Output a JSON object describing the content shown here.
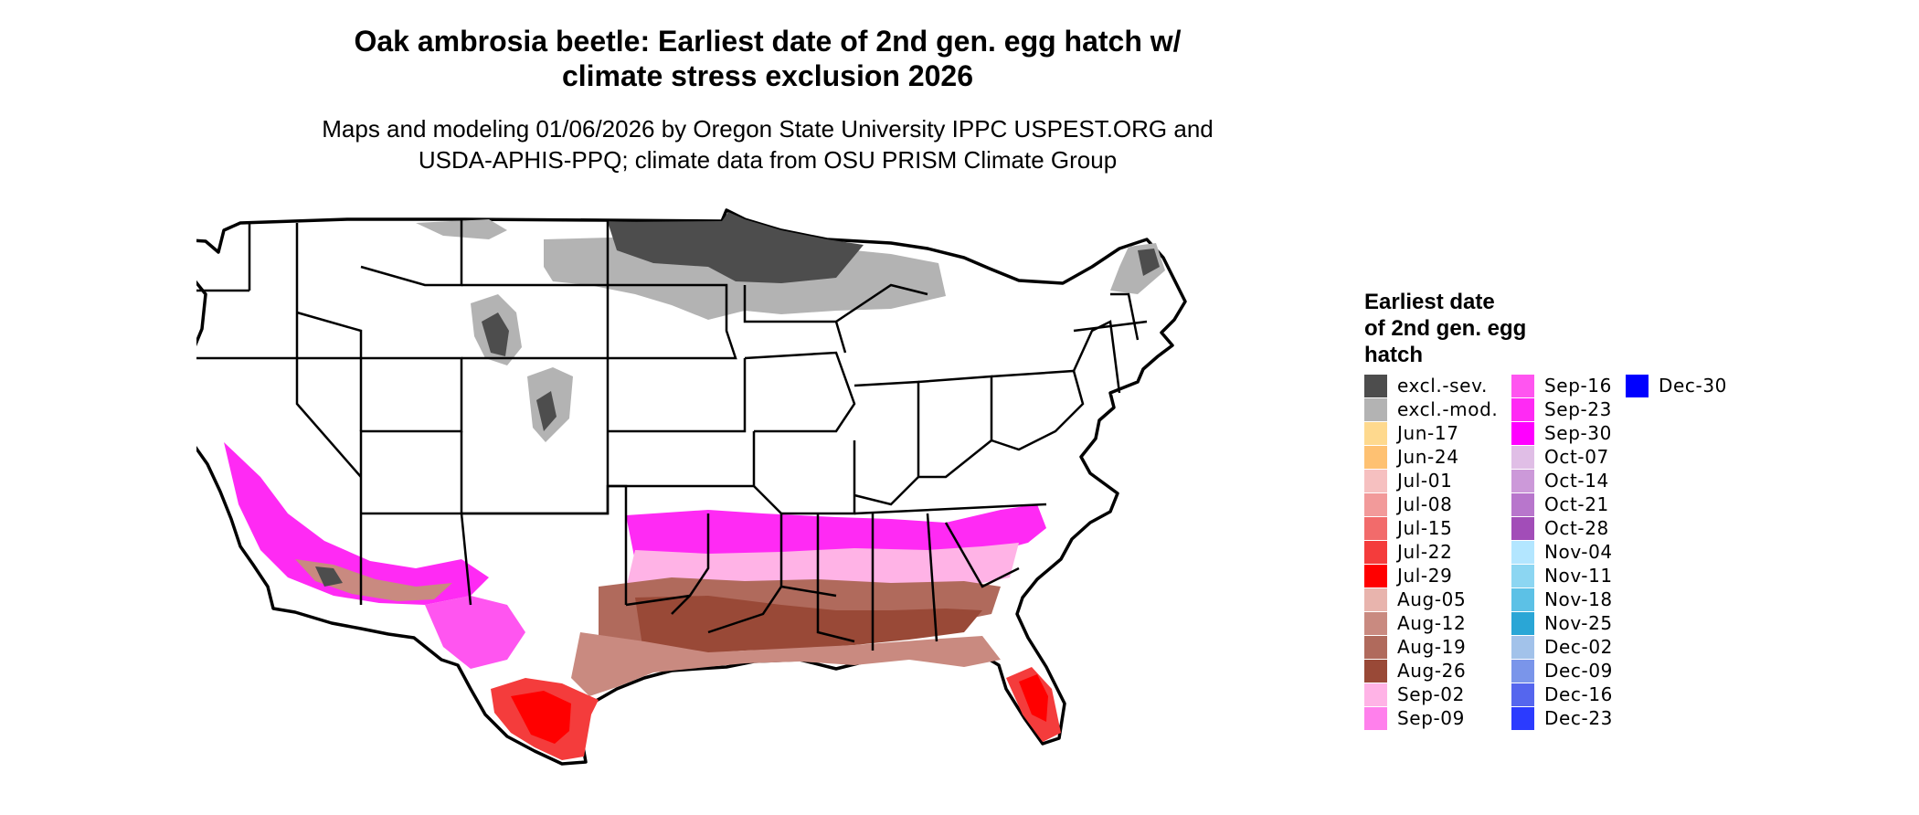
{
  "title": {
    "line1": "Oak ambrosia beetle: Earliest date of 2nd gen. egg hatch w/",
    "line2": "climate stress exclusion 2026"
  },
  "subtitle": {
    "line1": "Maps and modeling 01/06/2026 by Oregon State University IPPC USPEST.ORG and",
    "line2": "USDA-APHIS-PPQ; climate data from OSU PRISM Climate Group"
  },
  "legend": {
    "title_lines": [
      "Earliest date",
      "of 2nd gen. egg",
      "hatch"
    ],
    "columns": [
      [
        {
          "label": "excl.-sev.",
          "color": "#4d4d4d"
        },
        {
          "label": "excl.-mod.",
          "color": "#b3b3b3"
        },
        {
          "label": "Jun-17",
          "color": "#fed98e"
        },
        {
          "label": "Jun-24",
          "color": "#fec172"
        },
        {
          "label": "Jul-01",
          "color": "#f6c0c0"
        },
        {
          "label": "Jul-08",
          "color": "#f29a9a"
        },
        {
          "label": "Jul-15",
          "color": "#f26b6b"
        },
        {
          "label": "Jul-22",
          "color": "#f43c3c"
        },
        {
          "label": "Jul-29",
          "color": "#ff0000"
        },
        {
          "label": "Aug-05",
          "color": "#e8b4ad"
        },
        {
          "label": "Aug-12",
          "color": "#c98a80"
        },
        {
          "label": "Aug-19",
          "color": "#b06a5c"
        },
        {
          "label": "Aug-26",
          "color": "#994937"
        },
        {
          "label": "Sep-02",
          "color": "#ffb3e6"
        },
        {
          "label": "Sep-09",
          "color": "#ff80ec"
        }
      ],
      [
        {
          "label": "Sep-16",
          "color": "#ff55f0"
        },
        {
          "label": "Sep-23",
          "color": "#ff2af4"
        },
        {
          "label": "Sep-30",
          "color": "#ff00ff"
        },
        {
          "label": "Oct-07",
          "color": "#e0bee6"
        },
        {
          "label": "Oct-14",
          "color": "#cc99d9"
        },
        {
          "label": "Oct-21",
          "color": "#b876cc"
        },
        {
          "label": "Oct-28",
          "color": "#a24db8"
        },
        {
          "label": "Nov-04",
          "color": "#b3e6ff"
        },
        {
          "label": "Nov-11",
          "color": "#8cd6f2"
        },
        {
          "label": "Nov-18",
          "color": "#5cc1e6"
        },
        {
          "label": "Nov-25",
          "color": "#2aa6d6"
        },
        {
          "label": "Dec-02",
          "color": "#a2c2ea"
        },
        {
          "label": "Dec-09",
          "color": "#7a95ea"
        },
        {
          "label": "Dec-16",
          "color": "#5566ee"
        },
        {
          "label": "Dec-23",
          "color": "#2b3bff"
        }
      ],
      [
        {
          "label": "Dec-30",
          "color": "#0000ff"
        }
      ]
    ]
  }
}
